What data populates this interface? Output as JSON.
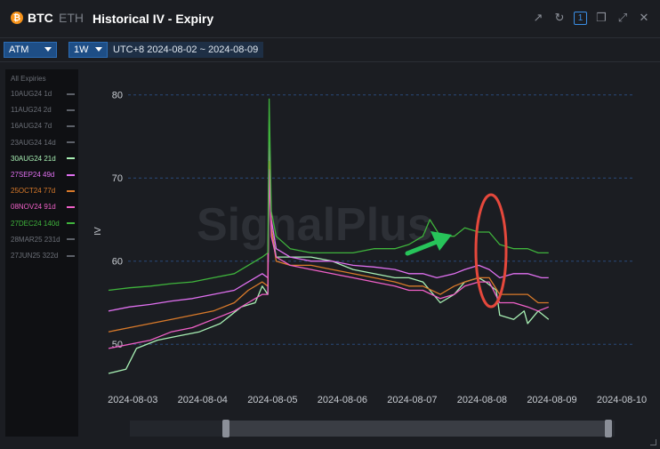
{
  "header": {
    "btc_label": "BTC",
    "btc_icon_glyph": "₿",
    "eth_label": "ETH",
    "title": "Historical IV - Expiry",
    "icons": [
      "external-link-icon",
      "refresh-icon",
      "layout-one-icon",
      "duplicate-window-icon",
      "expand-icon",
      "close-icon"
    ],
    "layout_badge": "1"
  },
  "toolbar": {
    "atm_label": "ATM",
    "period_label": "1W",
    "date_range": "UTC+8 2024-08-02 ~ 2024-08-09"
  },
  "legend": {
    "title": "All Expiries",
    "items": [
      {
        "label": "10AUG24 1d",
        "color": "#5c6068",
        "active": false
      },
      {
        "label": "11AUG24 2d",
        "color": "#5c6068",
        "active": false
      },
      {
        "label": "16AUG24 7d",
        "color": "#5c6068",
        "active": false
      },
      {
        "label": "23AUG24 14d",
        "color": "#5c6068",
        "active": false
      },
      {
        "label": "30AUG24 21d",
        "color": "#a8f0b4",
        "active": true
      },
      {
        "label": "27SEP24 49d",
        "color": "#e070f0",
        "active": true
      },
      {
        "label": "25OCT24 77d",
        "color": "#d97a2a",
        "active": true
      },
      {
        "label": "08NOV24 91d",
        "color": "#f060c8",
        "active": true
      },
      {
        "label": "27DEC24 140d",
        "color": "#3fb43c",
        "active": true
      },
      {
        "label": "28MAR25 231d",
        "color": "#5c6068",
        "active": false
      },
      {
        "label": "27JUN25 322d",
        "color": "#5c6068",
        "active": false
      }
    ]
  },
  "chart_data": {
    "type": "line",
    "ylabel": "IV",
    "ylim": [
      45,
      82
    ],
    "yticks": [
      50,
      60,
      70,
      80
    ],
    "xticks": [
      "2024-08-03",
      "2024-08-04",
      "2024-08-05",
      "2024-08-06",
      "2024-08-07",
      "2024-08-08",
      "2024-08-09",
      "2024-08-10"
    ],
    "xlim": [
      0,
      7.5
    ],
    "grid": "horizontal-dashed",
    "watermark": "SignalPlus",
    "series": [
      {
        "name": "30AUG24 21d",
        "color": "#a8f0b4",
        "points": [
          [
            0,
            46.5
          ],
          [
            0.25,
            47
          ],
          [
            0.4,
            49.5
          ],
          [
            0.7,
            50.5
          ],
          [
            1.0,
            51
          ],
          [
            1.3,
            51.5
          ],
          [
            1.6,
            52.5
          ],
          [
            1.9,
            54.5
          ],
          [
            2.1,
            55
          ],
          [
            2.2,
            57
          ],
          [
            2.28,
            56
          ],
          [
            2.3,
            77
          ],
          [
            2.33,
            64
          ],
          [
            2.4,
            60.5
          ],
          [
            2.6,
            60.5
          ],
          [
            2.9,
            60.5
          ],
          [
            3.2,
            60
          ],
          [
            3.5,
            59
          ],
          [
            3.8,
            58.5
          ],
          [
            4.1,
            58
          ],
          [
            4.3,
            58
          ],
          [
            4.5,
            57.5
          ],
          [
            4.75,
            55
          ],
          [
            4.95,
            56
          ],
          [
            5.1,
            57.5
          ],
          [
            5.3,
            58
          ],
          [
            5.4,
            57.5
          ],
          [
            5.55,
            56.5
          ],
          [
            5.6,
            53.5
          ],
          [
            5.8,
            53
          ],
          [
            5.95,
            54
          ],
          [
            6.0,
            52.5
          ],
          [
            6.15,
            54
          ],
          [
            6.3,
            53
          ]
        ]
      },
      {
        "name": "27SEP24 49d",
        "color": "#e070f0",
        "points": [
          [
            0,
            54
          ],
          [
            0.3,
            54.5
          ],
          [
            0.6,
            54.8
          ],
          [
            0.9,
            55.2
          ],
          [
            1.2,
            55.5
          ],
          [
            1.5,
            56
          ],
          [
            1.8,
            56.5
          ],
          [
            2.0,
            57.5
          ],
          [
            2.2,
            58.5
          ],
          [
            2.28,
            58
          ],
          [
            2.3,
            74
          ],
          [
            2.33,
            65
          ],
          [
            2.4,
            61.5
          ],
          [
            2.6,
            60.5
          ],
          [
            2.9,
            60
          ],
          [
            3.2,
            60
          ],
          [
            3.5,
            59.5
          ],
          [
            3.8,
            59.3
          ],
          [
            4.1,
            59
          ],
          [
            4.3,
            58.5
          ],
          [
            4.5,
            58.5
          ],
          [
            4.7,
            58
          ],
          [
            4.95,
            58.5
          ],
          [
            5.1,
            59
          ],
          [
            5.3,
            59.5
          ],
          [
            5.45,
            59
          ],
          [
            5.6,
            58
          ],
          [
            5.8,
            58.5
          ],
          [
            6.0,
            58.5
          ],
          [
            6.2,
            58
          ],
          [
            6.3,
            58
          ]
        ]
      },
      {
        "name": "25OCT24 77d",
        "color": "#d97a2a",
        "points": [
          [
            0,
            51.5
          ],
          [
            0.3,
            52
          ],
          [
            0.6,
            52.5
          ],
          [
            0.9,
            53
          ],
          [
            1.2,
            53.5
          ],
          [
            1.5,
            54
          ],
          [
            1.8,
            55
          ],
          [
            2.0,
            56.5
          ],
          [
            2.2,
            57.5
          ],
          [
            2.28,
            57
          ],
          [
            2.3,
            72
          ],
          [
            2.33,
            64
          ],
          [
            2.4,
            60
          ],
          [
            2.6,
            59.5
          ],
          [
            2.9,
            59.5
          ],
          [
            3.2,
            59
          ],
          [
            3.5,
            58.5
          ],
          [
            3.8,
            58
          ],
          [
            4.1,
            57.5
          ],
          [
            4.3,
            57
          ],
          [
            4.5,
            57
          ],
          [
            4.75,
            56
          ],
          [
            4.95,
            57
          ],
          [
            5.1,
            57.5
          ],
          [
            5.3,
            58
          ],
          [
            5.45,
            58
          ],
          [
            5.6,
            56
          ],
          [
            5.8,
            56
          ],
          [
            6.0,
            56
          ],
          [
            6.15,
            55
          ],
          [
            6.3,
            55
          ]
        ]
      },
      {
        "name": "08NOV24 91d",
        "color": "#f060c8",
        "points": [
          [
            0,
            49.5
          ],
          [
            0.3,
            50
          ],
          [
            0.6,
            50.5
          ],
          [
            0.9,
            51.5
          ],
          [
            1.2,
            52
          ],
          [
            1.5,
            53
          ],
          [
            1.8,
            54
          ],
          [
            2.0,
            55
          ],
          [
            2.2,
            56
          ],
          [
            2.28,
            56
          ],
          [
            2.3,
            71
          ],
          [
            2.33,
            63
          ],
          [
            2.4,
            60.5
          ],
          [
            2.6,
            59.5
          ],
          [
            2.9,
            59
          ],
          [
            3.2,
            58.5
          ],
          [
            3.5,
            58
          ],
          [
            3.8,
            57.5
          ],
          [
            4.1,
            57
          ],
          [
            4.3,
            56.5
          ],
          [
            4.5,
            56.5
          ],
          [
            4.75,
            55.5
          ],
          [
            4.95,
            56
          ],
          [
            5.1,
            57
          ],
          [
            5.3,
            57.5
          ],
          [
            5.45,
            57.5
          ],
          [
            5.6,
            55
          ],
          [
            5.8,
            55
          ],
          [
            6.0,
            54.5
          ],
          [
            6.15,
            54
          ],
          [
            6.3,
            54.5
          ]
        ]
      },
      {
        "name": "27DEC24 140d",
        "color": "#3fb43c",
        "points": [
          [
            0,
            56.5
          ],
          [
            0.3,
            56.8
          ],
          [
            0.6,
            57
          ],
          [
            0.9,
            57.3
          ],
          [
            1.2,
            57.5
          ],
          [
            1.5,
            58
          ],
          [
            1.8,
            58.5
          ],
          [
            2.0,
            59.5
          ],
          [
            2.2,
            60.5
          ],
          [
            2.28,
            61
          ],
          [
            2.3,
            79.5
          ],
          [
            2.33,
            66
          ],
          [
            2.4,
            63
          ],
          [
            2.6,
            61.5
          ],
          [
            2.9,
            61
          ],
          [
            3.2,
            61
          ],
          [
            3.5,
            61
          ],
          [
            3.8,
            61.5
          ],
          [
            4.1,
            61.5
          ],
          [
            4.3,
            62
          ],
          [
            4.5,
            63
          ],
          [
            4.6,
            65
          ],
          [
            4.75,
            63
          ],
          [
            4.95,
            63
          ],
          [
            5.1,
            64
          ],
          [
            5.3,
            63.5
          ],
          [
            5.45,
            63.5
          ],
          [
            5.6,
            62
          ],
          [
            5.8,
            61.5
          ],
          [
            6.0,
            61.5
          ],
          [
            6.15,
            61
          ],
          [
            6.3,
            61
          ]
        ]
      }
    ],
    "annotations": [
      {
        "kind": "arrow",
        "color": "#27c45a"
      },
      {
        "kind": "ellipse",
        "color": "#e5483c"
      }
    ]
  }
}
